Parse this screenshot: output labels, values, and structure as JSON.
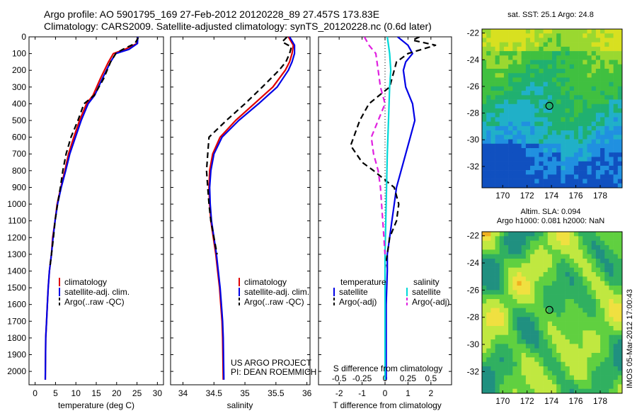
{
  "titles": {
    "line1": "Argo profile: AO 5901795_169 27-Feb-2012 20120228_89 27.457S 173.83E",
    "line2": "Climatology: CARS2009. Satellite-adjusted climatology: synTS_20120228.nc (0.6d later)"
  },
  "project_text": {
    "line1": "US ARGO PROJECT",
    "line2": "PI: DEAN ROEMMICH"
  },
  "side_stamp": "IMOS 05-Mar-2012 17:00:43",
  "legend_profile": [
    "climatology",
    "satellite-adj. clim.",
    "Argo(..raw -QC)"
  ],
  "legend_diff": {
    "temp_title": "temperature",
    "sal_title": "salinity",
    "temp_items": [
      "satellite",
      "Argo(-adj)"
    ],
    "sal_items": [
      "satellite",
      "Argo(-adj)"
    ]
  },
  "colors": {
    "climatology": "#e00000",
    "satellite": "#0000e6",
    "argo": "#000000",
    "sal_satellite": "#00d8d8",
    "sal_argo": "#e020e0"
  },
  "chart_data": [
    {
      "type": "line",
      "panel": "temperature",
      "xlabel": "temperature (deg C)",
      "ylabel": "",
      "xlim": [
        -1.5,
        31.5
      ],
      "ylim": [
        2080,
        0
      ],
      "xticks": [
        0,
        5,
        10,
        15,
        20,
        25,
        30
      ],
      "yticks": [
        0,
        100,
        200,
        300,
        400,
        500,
        600,
        700,
        800,
        900,
        1000,
        1100,
        1200,
        1300,
        1400,
        1500,
        1600,
        1700,
        1800,
        1900,
        2000
      ],
      "series": [
        {
          "name": "climatology",
          "color": "#e00000",
          "dash": false,
          "x": [
            25.2,
            25.0,
            22.0,
            19.2,
            18.0,
            16.0,
            14.2,
            12.6,
            10.9,
            9.5,
            8.2,
            7.3,
            6.3,
            5.4,
            4.9,
            4.3,
            4.0,
            3.5,
            3.2,
            3.0,
            2.8,
            2.6,
            2.5
          ],
          "y": [
            0,
            40,
            75,
            100,
            150,
            250,
            350,
            400,
            500,
            600,
            700,
            800,
            900,
            1000,
            1100,
            1200,
            1300,
            1400,
            1500,
            1600,
            1700,
            1800,
            2050
          ]
        },
        {
          "name": "satellite-adj. clim.",
          "color": "#0000e6",
          "dash": false,
          "x": [
            25.2,
            25.1,
            23.0,
            19.8,
            18.5,
            16.5,
            14.6,
            13.0,
            11.3,
            9.9,
            8.5,
            7.5,
            6.4,
            5.5,
            4.9,
            4.4,
            4.0,
            3.5,
            3.2,
            3.0,
            2.8,
            2.6,
            2.5
          ],
          "y": [
            0,
            40,
            75,
            100,
            150,
            250,
            350,
            400,
            500,
            600,
            700,
            800,
            900,
            1000,
            1100,
            1200,
            1300,
            1400,
            1500,
            1600,
            1700,
            1800,
            2050
          ]
        },
        {
          "name": "Argo(..raw -QC)",
          "color": "#000000",
          "dash": true,
          "x": [
            25.3,
            24.5,
            21.5,
            19.8,
            18.5,
            16.8,
            14.5,
            12.0,
            10.5,
            8.8,
            7.6,
            6.8,
            6.2,
            5.5,
            4.9,
            4.5,
            4.0,
            3.6
          ],
          "y": [
            5,
            40,
            75,
            100,
            150,
            250,
            350,
            400,
            500,
            600,
            700,
            800,
            900,
            1000,
            1100,
            1200,
            1300,
            1380
          ]
        }
      ]
    },
    {
      "type": "line",
      "panel": "salinity",
      "xlabel": "salinity",
      "ylabel": "",
      "xlim": [
        33.8,
        36.05
      ],
      "ylim": [
        2080,
        0
      ],
      "xticks": [
        34,
        34.5,
        35,
        35.5,
        36
      ],
      "series": [
        {
          "name": "climatology",
          "color": "#e00000",
          "dash": false,
          "x": [
            35.7,
            35.78,
            35.76,
            35.72,
            35.65,
            35.45,
            35.15,
            34.85,
            34.6,
            34.48,
            34.43,
            34.42,
            34.43,
            34.45,
            34.49,
            34.53,
            34.56,
            34.59,
            34.61,
            34.63,
            34.64,
            34.65
          ],
          "y": [
            0,
            50,
            100,
            150,
            200,
            300,
            400,
            500,
            600,
            700,
            800,
            900,
            1000,
            1100,
            1200,
            1300,
            1400,
            1500,
            1600,
            1700,
            1800,
            2050
          ]
        },
        {
          "name": "satellite-adj. clim.",
          "color": "#0000e6",
          "dash": false,
          "x": [
            35.72,
            35.8,
            35.8,
            35.76,
            35.7,
            35.52,
            35.22,
            34.9,
            34.63,
            34.5,
            34.45,
            34.43,
            34.44,
            34.46,
            34.5,
            34.54,
            34.57,
            34.6,
            34.62,
            34.64,
            34.65,
            34.66
          ],
          "y": [
            0,
            50,
            100,
            150,
            200,
            300,
            400,
            500,
            600,
            700,
            800,
            900,
            1000,
            1100,
            1200,
            1300,
            1400,
            1500,
            1600,
            1700,
            1800,
            2050
          ]
        },
        {
          "name": "Argo(..raw -QC)",
          "color": "#000000",
          "dash": true,
          "x": [
            35.68,
            35.6,
            35.75,
            35.72,
            35.66,
            35.55,
            35.28,
            35.0,
            34.7,
            34.42,
            34.4,
            34.38,
            34.4,
            34.42,
            34.45,
            34.5,
            34.55
          ],
          "y": [
            0,
            30,
            60,
            100,
            150,
            200,
            300,
            400,
            500,
            600,
            700,
            800,
            900,
            1000,
            1100,
            1200,
            1300
          ]
        }
      ]
    },
    {
      "type": "line",
      "panel": "difference",
      "xlabel": "T difference from climatology",
      "xlabel_top": "S difference from climatology",
      "ylabel": "",
      "xlim": [
        -2.9,
        2.9
      ],
      "ylim": [
        2080,
        0
      ],
      "xticks": [
        -2,
        -1,
        0,
        1,
        2
      ],
      "xticks_top": [
        -0.5,
        -0.25,
        0,
        0.25,
        0.5
      ],
      "series": [
        {
          "name": "temperature satellite",
          "color": "#0000e6",
          "dash": false,
          "x": [
            0.55,
            1.0,
            1.2,
            0.9,
            0.8,
            0.9,
            1.2,
            1.3,
            1.1,
            0.9,
            0.7,
            0.5,
            0.4,
            0.3,
            0.2,
            0.1,
            0.1,
            0.05,
            0.05
          ],
          "y": [
            0,
            50,
            100,
            150,
            200,
            300,
            400,
            500,
            600,
            700,
            800,
            900,
            1000,
            1100,
            1200,
            1300,
            1400,
            1600,
            2050
          ]
        },
        {
          "name": "temperature Argo(-adj)",
          "color": "#000000",
          "dash": true,
          "x": [
            1.5,
            1.2,
            2.2,
            1.0,
            0.5,
            0.2,
            -0.7,
            -1.1,
            -1.5,
            -1.0,
            -0.5,
            0.4,
            0.6,
            0.5,
            0.2,
            0.1,
            0.0
          ],
          "y": [
            0,
            20,
            50,
            100,
            150,
            300,
            400,
            500,
            650,
            750,
            800,
            900,
            1000,
            1100,
            1200,
            1300,
            1380
          ]
        },
        {
          "name": "salinity satellite",
          "color": "#00d8d8",
          "dash": false,
          "x": [
            0.1,
            0.15,
            0.2,
            0.25,
            0.2,
            0.15,
            0.1,
            0.05,
            0.0,
            0.0
          ],
          "y": [
            0,
            50,
            100,
            200,
            300,
            500,
            700,
            1000,
            1300,
            2050
          ]
        },
        {
          "name": "salinity Argo(-adj)",
          "color": "#e020e0",
          "dash": true,
          "x": [
            -0.9,
            -0.7,
            -0.4,
            -0.3,
            -0.2,
            0.0,
            -0.3,
            -0.6,
            -0.5,
            -0.3,
            -0.2,
            -0.1,
            0.0
          ],
          "y": [
            0,
            50,
            100,
            200,
            300,
            400,
            500,
            600,
            700,
            800,
            900,
            1100,
            1300
          ]
        }
      ]
    },
    {
      "type": "heatmap",
      "panel": "sst-map",
      "title": "sat. SST: 25.1 Argo: 24.8",
      "xlim": [
        168.3,
        179.8
      ],
      "ylim": [
        -33.6,
        -21.7
      ],
      "xticks": [
        170,
        172,
        174,
        176,
        178
      ],
      "yticks": [
        -22,
        -24,
        -26,
        -28,
        -30,
        -32
      ],
      "marker": {
        "lon": 173.83,
        "lat": -27.457
      }
    },
    {
      "type": "heatmap",
      "panel": "sla-map",
      "title_lines": [
        "Altim. SLA: 0.094",
        "Argo h1000: 0.081 h2000: NaN"
      ],
      "xlim": [
        168.3,
        179.8
      ],
      "ylim": [
        -33.6,
        -21.7
      ],
      "xticks": [
        170,
        172,
        174,
        176,
        178
      ],
      "yticks": [
        -22,
        -24,
        -26,
        -28,
        -30,
        -32
      ],
      "marker": {
        "lon": 173.83,
        "lat": -27.457
      }
    }
  ]
}
